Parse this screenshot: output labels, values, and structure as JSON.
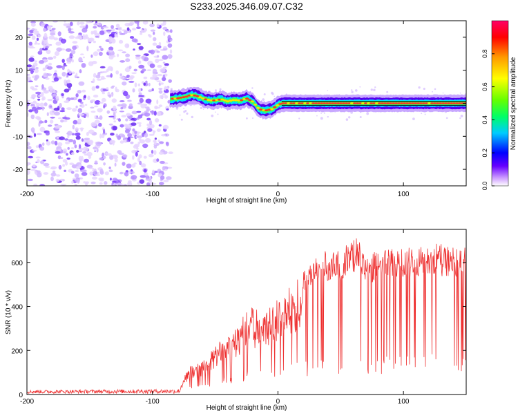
{
  "title": "S233.2025.346.09.07.C32",
  "chart_data": [
    {
      "type": "heatmap",
      "xlabel": "Height of straight line (km)",
      "ylabel": "Frequency (Hz)",
      "xlim": [
        -200,
        150
      ],
      "ylim": [
        -25,
        25
      ],
      "xticks": [
        -200,
        -100,
        0,
        100
      ],
      "xtick_labels": [
        "-200",
        "-100",
        "0",
        "100"
      ],
      "yticks": [
        -20,
        -10,
        0,
        10,
        20
      ],
      "ytick_labels": [
        "-20",
        "-10",
        "0",
        "10",
        "20"
      ],
      "noise_region_x": [
        -200,
        -85
      ],
      "ridge_points": [
        {
          "x": -86,
          "y": 1.3
        },
        {
          "x": -80,
          "y": 1.5
        },
        {
          "x": -73,
          "y": 2.0
        },
        {
          "x": -70,
          "y": 2.5
        },
        {
          "x": -65,
          "y": 2.3
        },
        {
          "x": -58,
          "y": 1.2
        },
        {
          "x": -52,
          "y": 0.8
        },
        {
          "x": -45,
          "y": 1.2
        },
        {
          "x": -40,
          "y": 0.6
        },
        {
          "x": -35,
          "y": 1.0
        },
        {
          "x": -30,
          "y": 0.8
        },
        {
          "x": -25,
          "y": 1.5
        },
        {
          "x": -20,
          "y": 0.5
        },
        {
          "x": -15,
          "y": -1.8
        },
        {
          "x": -10,
          "y": -2.2
        },
        {
          "x": -5,
          "y": -1.8
        },
        {
          "x": 0,
          "y": -0.5
        },
        {
          "x": 3,
          "y": 0.0
        },
        {
          "x": 150,
          "y": 0.0
        }
      ],
      "colorbar": {
        "label": "Normalized spectral amplitude",
        "range": [
          0.0,
          1.0
        ],
        "ticks": [
          0.0,
          0.2,
          0.4,
          0.6,
          0.8
        ],
        "tick_labels": [
          "0.0",
          "0.2",
          "0.4",
          "0.6",
          "0.8"
        ],
        "colors": [
          "#ffffff",
          "#cc99ff",
          "#6600ff",
          "#0000ff",
          "#00ccff",
          "#00ff66",
          "#66ff00",
          "#ffff00",
          "#ff9900",
          "#ff0000",
          "#ff0066"
        ]
      }
    },
    {
      "type": "line",
      "xlabel": "Height of straight line (km)",
      "ylabel": "SNR (10 * v/v)",
      "xlim": [
        -200,
        150
      ],
      "ylim": [
        0,
        750
      ],
      "xticks": [
        -200,
        -100,
        0,
        100
      ],
      "xtick_labels": [
        "-200",
        "-100",
        "0",
        "100"
      ],
      "yticks": [
        0,
        200,
        400,
        600
      ],
      "ytick_labels": [
        "0",
        "200",
        "400",
        "600"
      ],
      "series": [
        {
          "name": "SNR",
          "color": "#ee3030",
          "envelope_upper": [
            {
              "x": -200,
              "y": 20
            },
            {
              "x": -78,
              "y": 25
            },
            {
              "x": -75,
              "y": 80
            },
            {
              "x": -70,
              "y": 130
            },
            {
              "x": -60,
              "y": 150
            },
            {
              "x": -50,
              "y": 220
            },
            {
              "x": -40,
              "y": 280
            },
            {
              "x": -30,
              "y": 320
            },
            {
              "x": -25,
              "y": 420
            },
            {
              "x": -15,
              "y": 380
            },
            {
              "x": -5,
              "y": 400
            },
            {
              "x": 0,
              "y": 440
            },
            {
              "x": 10,
              "y": 500
            },
            {
              "x": 20,
              "y": 570
            },
            {
              "x": 30,
              "y": 630
            },
            {
              "x": 40,
              "y": 660
            },
            {
              "x": 50,
              "y": 660
            },
            {
              "x": 63,
              "y": 720
            },
            {
              "x": 70,
              "y": 640
            },
            {
              "x": 90,
              "y": 660
            },
            {
              "x": 110,
              "y": 680
            },
            {
              "x": 120,
              "y": 690
            },
            {
              "x": 140,
              "y": 680
            },
            {
              "x": 150,
              "y": 670
            }
          ],
          "envelope_lower": [
            {
              "x": -200,
              "y": 5
            },
            {
              "x": -80,
              "y": 5
            },
            {
              "x": -75,
              "y": 15
            },
            {
              "x": -60,
              "y": 30
            },
            {
              "x": -40,
              "y": 50
            },
            {
              "x": -20,
              "y": 60
            },
            {
              "x": 0,
              "y": 70
            },
            {
              "x": 30,
              "y": 85
            },
            {
              "x": 60,
              "y": 90
            },
            {
              "x": 100,
              "y": 95
            },
            {
              "x": 150,
              "y": 95
            }
          ]
        }
      ]
    }
  ]
}
